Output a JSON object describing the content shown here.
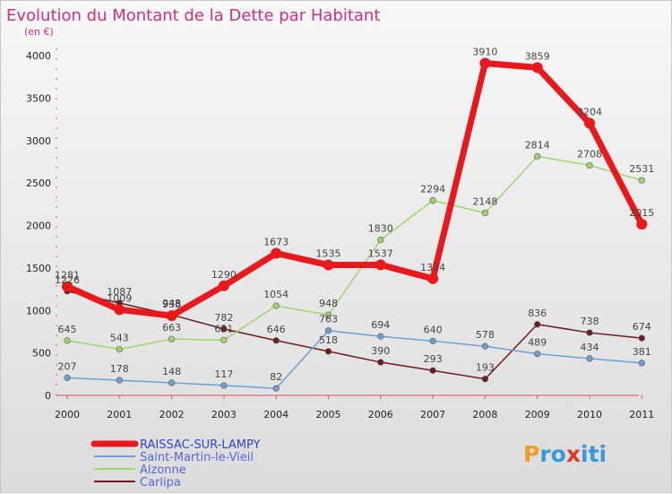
{
  "chart_data": {
    "type": "line",
    "title": "Evolution du Montant de la Dette par Habitant",
    "subtitle": "(en €)",
    "categories": [
      "2000",
      "2001",
      "2002",
      "2003",
      "2004",
      "2005",
      "2006",
      "2007",
      "2008",
      "2009",
      "2010",
      "2011"
    ],
    "ylim": [
      0,
      4000
    ],
    "yticks": [
      0,
      500,
      1000,
      1500,
      2000,
      2500,
      3000,
      3500,
      4000
    ],
    "grid": false,
    "legend_position": "bottom-left",
    "series": [
      {
        "name": "RAISSAC-SUR-LAMPY",
        "color": "#e8191d",
        "values": [
          1281,
          1009,
          938,
          1290,
          1673,
          1535,
          1537,
          1374,
          3910,
          3859,
          3204,
          2015
        ]
      },
      {
        "name": "Saint-Martin-le-Vieil",
        "color": "#6d9fd2",
        "values": [
          207,
          178,
          148,
          117,
          82,
          763,
          694,
          640,
          578,
          489,
          434,
          381
        ]
      },
      {
        "name": "Alzonne",
        "color": "#9ed56b",
        "values": [
          645,
          543,
          663,
          651,
          1054,
          948,
          1830,
          2294,
          2148,
          2814,
          2708,
          2531
        ]
      },
      {
        "name": "Carlipa",
        "color": "#6e1c1c",
        "values": [
          1226,
          1087,
          948,
          782,
          646,
          518,
          390,
          293,
          193,
          836,
          738,
          674
        ]
      }
    ]
  },
  "brand": {
    "text": "Proxiti",
    "letters": [
      "P",
      "r",
      "o",
      "x",
      "i",
      "t",
      "i"
    ],
    "colors": [
      "#f0a020",
      "#3a9ad9",
      "#3a9ad9",
      "#d83a2a",
      "#3a9ad9",
      "#3a9ad9",
      "#3a9ad9"
    ]
  }
}
